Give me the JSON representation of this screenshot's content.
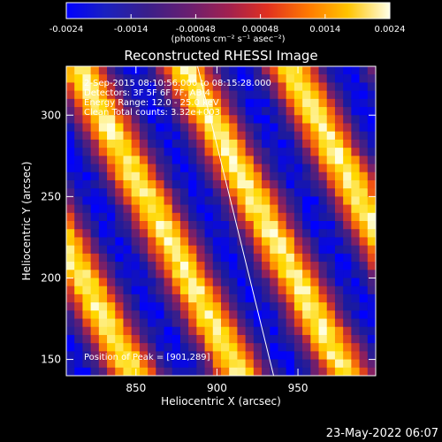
{
  "chart_data": {
    "type": "heatmap",
    "title": "Reconstructed RHESSI Image",
    "xlabel": "Heliocentric X (arcsec)",
    "ylabel": "Heliocentric Y (arcsec)",
    "xlim": [
      807,
      998
    ],
    "ylim": [
      140,
      330
    ],
    "x_ticks": [
      850,
      900,
      950
    ],
    "y_ticks": [
      150,
      200,
      250,
      300
    ],
    "colorbar": {
      "ticks": [
        "-0.0024",
        "-0.0014",
        "-0.00048",
        "0.00048",
        "0.0014",
        "0.0024"
      ],
      "range": [
        -0.0024,
        0.0024
      ],
      "unit_label": "(photons cm⁻² s⁻¹ asec⁻²)"
    },
    "annotations": {
      "time_range": "2-Sep-2015 08:10:56.000 to 08:15:28.000",
      "detectors": "Detectors: 3F 5F 6F 7F, AB 4",
      "energy": "Energy Range: 12.0 - 25.0 keV",
      "clean": "Clean    Total counts: 3.32e+003",
      "peak": "Position of Peak = [901,289]"
    },
    "stripes": {
      "direction_deg": -62,
      "period_arcsec": 58,
      "note_peak": [
        901,
        289
      ]
    },
    "limb_line": [
      [
        888,
        330
      ],
      [
        935,
        140
      ]
    ]
  },
  "footer": {
    "timestamp": "23-May-2022 06:07"
  },
  "colors": {
    "background": "#000000",
    "axis": "#ffffff",
    "colormap": [
      "#0000ff",
      "#1a1aa0",
      "#3a1f8a",
      "#5a1f78",
      "#8a2060",
      "#c43030",
      "#f05010",
      "#ff9a00",
      "#ffd800",
      "#ffffe0"
    ]
  }
}
